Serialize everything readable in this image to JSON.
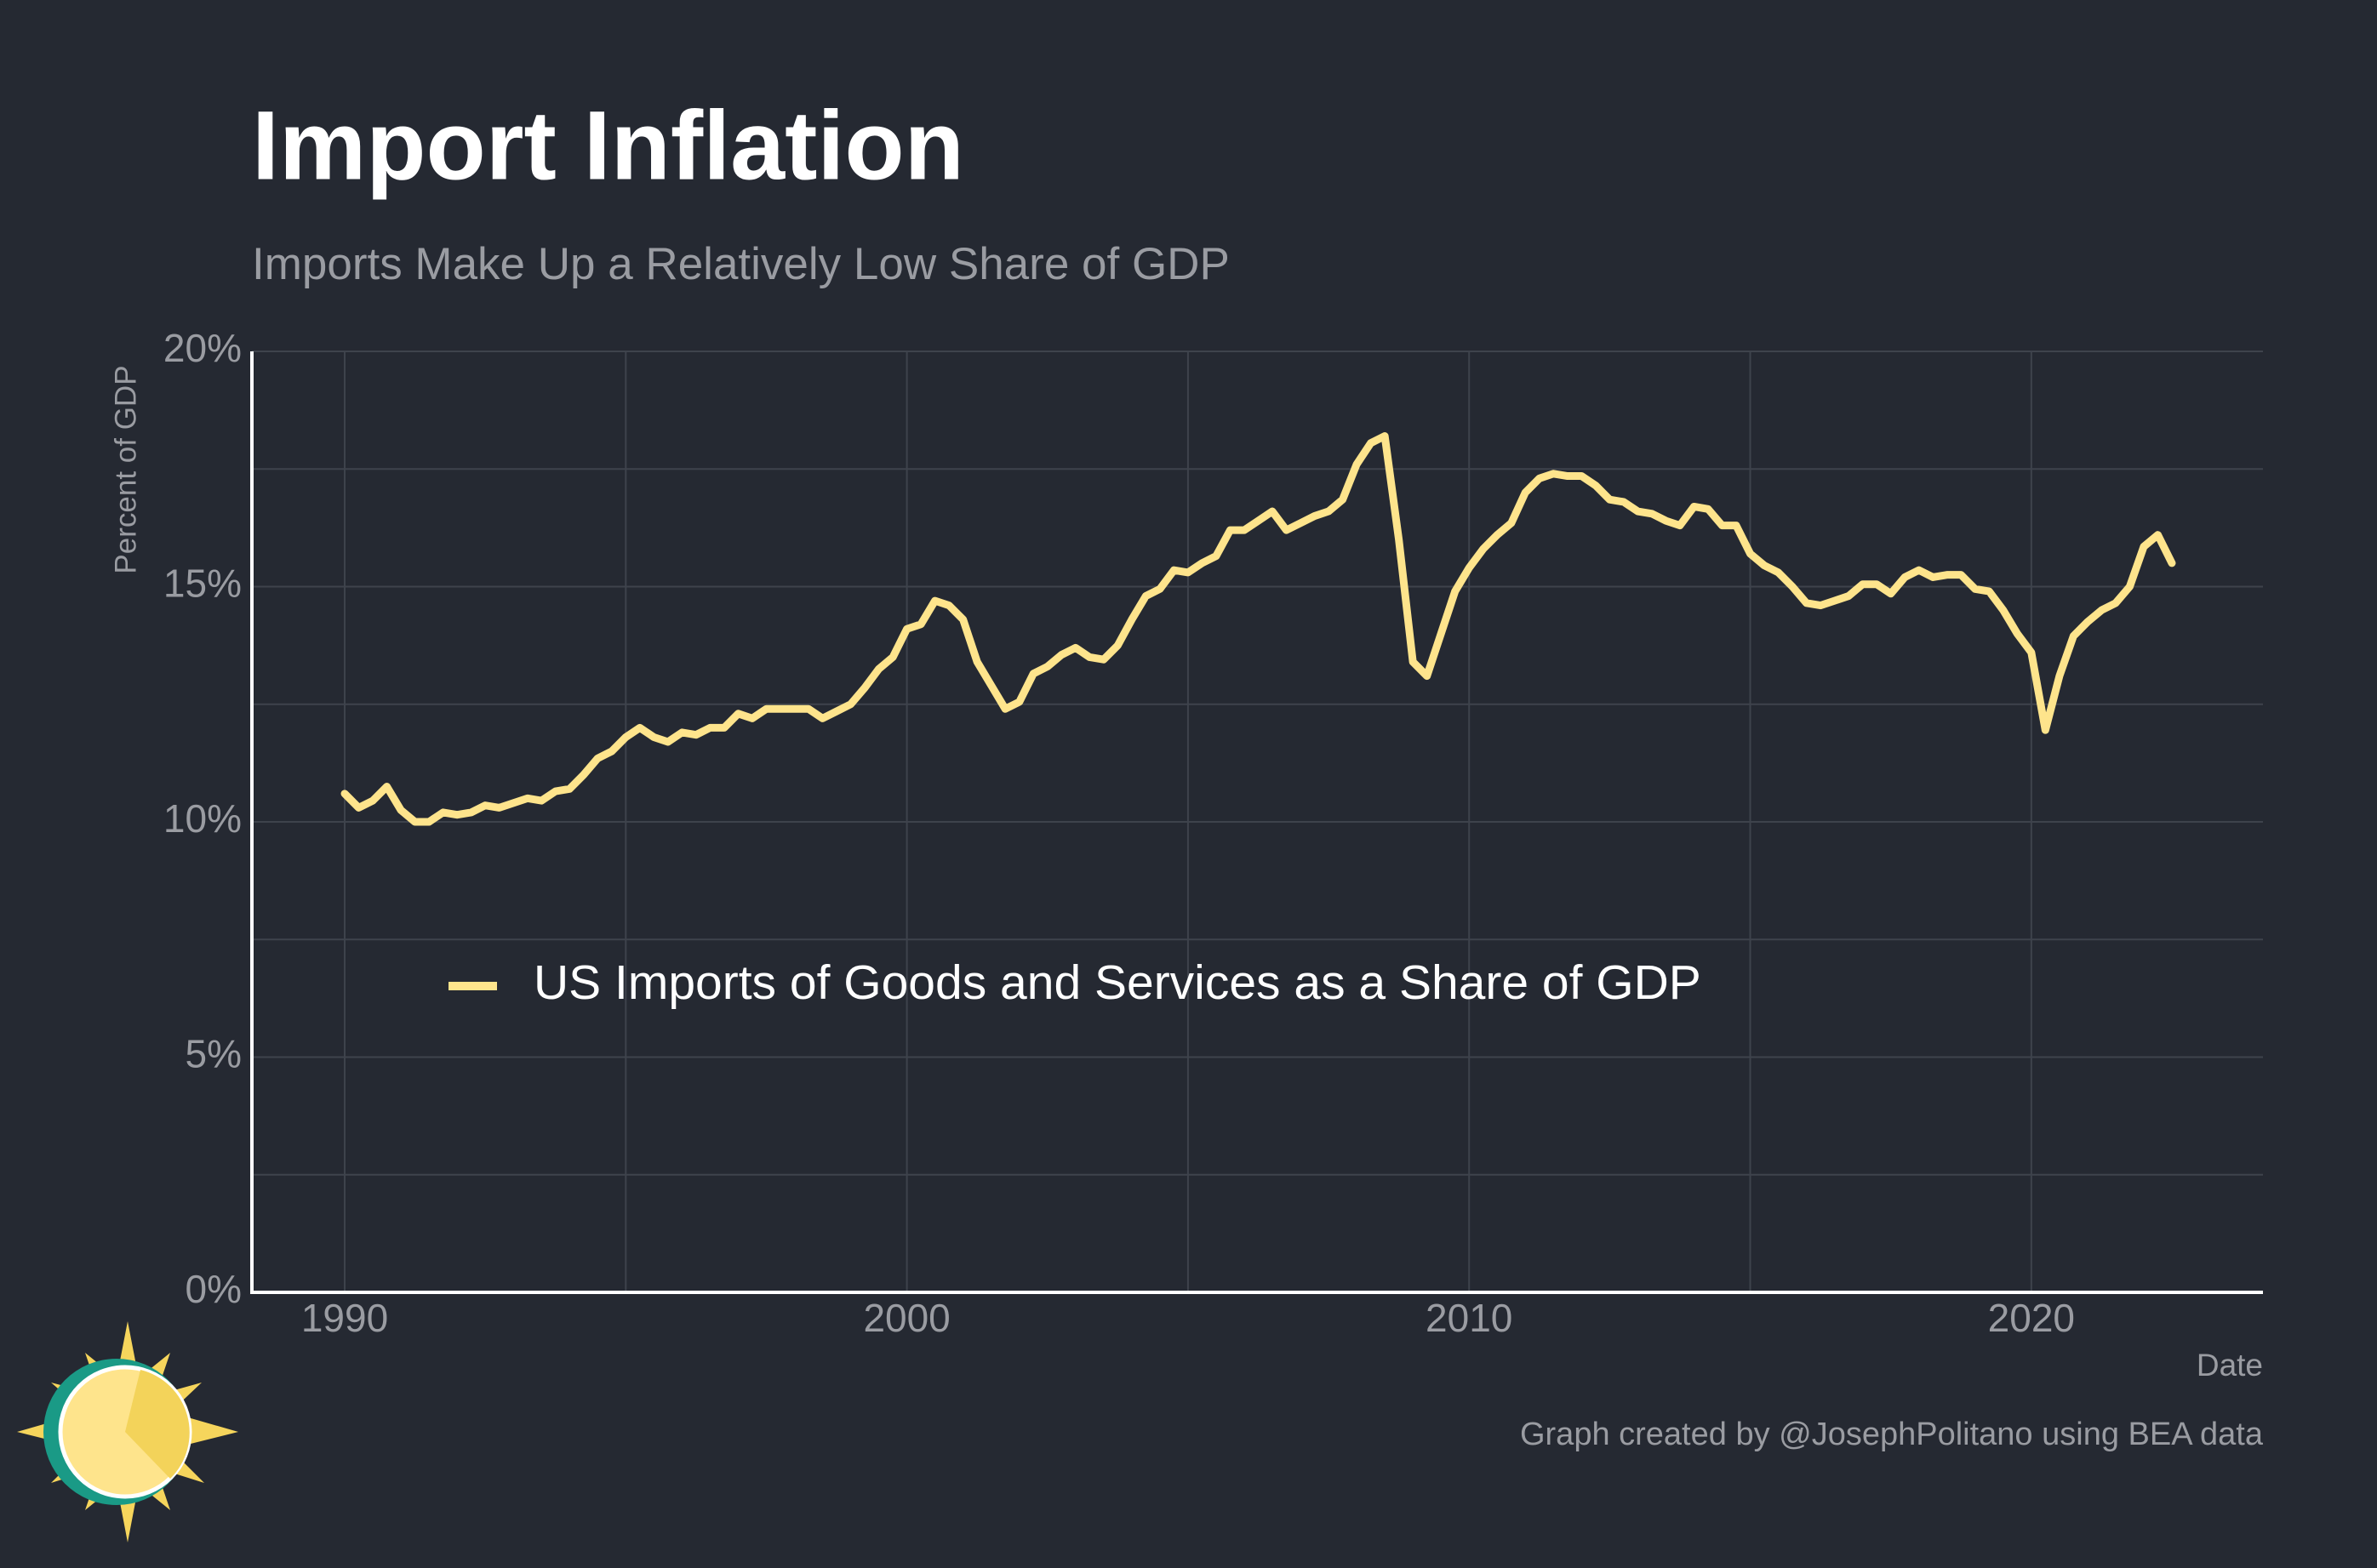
{
  "chart_data": {
    "type": "line",
    "title": "Import Inflation",
    "subtitle": "Imports Make Up a Relatively Low Share of GDP",
    "y_label": "Percent of GDP",
    "x_label": "Date",
    "credit": "Graph created by @JosephPolitano using BEA data",
    "x": [
      1990,
      1990.25,
      1990.5,
      1990.75,
      1991,
      1991.25,
      1991.5,
      1991.75,
      1992,
      1992.25,
      1992.5,
      1992.75,
      1993,
      1993.25,
      1993.5,
      1993.75,
      1994,
      1994.25,
      1994.5,
      1994.75,
      1995,
      1995.25,
      1995.5,
      1995.75,
      1996,
      1996.25,
      1996.5,
      1996.75,
      1997,
      1997.25,
      1997.5,
      1997.75,
      1998,
      1998.25,
      1998.5,
      1998.75,
      1999,
      1999.25,
      1999.5,
      1999.75,
      2000,
      2000.25,
      2000.5,
      2000.75,
      2001,
      2001.25,
      2001.5,
      2001.75,
      2002,
      2002.25,
      2002.5,
      2002.75,
      2003,
      2003.25,
      2003.5,
      2003.75,
      2004,
      2004.25,
      2004.5,
      2004.75,
      2005,
      2005.25,
      2005.5,
      2005.75,
      2006,
      2006.25,
      2006.5,
      2006.75,
      2007,
      2007.25,
      2007.5,
      2007.75,
      2008,
      2008.25,
      2008.5,
      2008.75,
      2009,
      2009.25,
      2009.5,
      2009.75,
      2010,
      2010.25,
      2010.5,
      2010.75,
      2011,
      2011.25,
      2011.5,
      2011.75,
      2012,
      2012.25,
      2012.5,
      2012.75,
      2013,
      2013.25,
      2013.5,
      2013.75,
      2014,
      2014.25,
      2014.5,
      2014.75,
      2015,
      2015.25,
      2015.5,
      2015.75,
      2016,
      2016.25,
      2016.5,
      2016.75,
      2017,
      2017.25,
      2017.5,
      2017.75,
      2018,
      2018.25,
      2018.5,
      2018.75,
      2019,
      2019.25,
      2019.5,
      2019.75,
      2020,
      2020.25,
      2020.5,
      2020.75,
      2021,
      2021.25,
      2021.5,
      2021.75,
      2022,
      2022.25,
      2022.5
    ],
    "series": [
      {
        "name": "US Imports of Goods and Services as a Share of GDP",
        "color": "#fee48c",
        "values": [
          10.6,
          10.3,
          10.45,
          10.75,
          10.25,
          10.0,
          10.0,
          10.2,
          10.15,
          10.2,
          10.35,
          10.3,
          10.4,
          10.5,
          10.45,
          10.65,
          10.7,
          11.0,
          11.35,
          11.5,
          11.8,
          12.0,
          11.8,
          11.7,
          11.9,
          11.85,
          12.0,
          12.0,
          12.3,
          12.2,
          12.4,
          12.4,
          12.4,
          12.4,
          12.2,
          12.35,
          12.5,
          12.85,
          13.25,
          13.5,
          14.1,
          14.2,
          14.7,
          14.6,
          14.3,
          13.4,
          12.9,
          12.4,
          12.55,
          13.15,
          13.3,
          13.55,
          13.7,
          13.5,
          13.45,
          13.75,
          14.3,
          14.8,
          14.95,
          15.35,
          15.3,
          15.5,
          15.65,
          16.2,
          16.2,
          16.4,
          16.6,
          16.2,
          16.35,
          16.5,
          16.6,
          16.85,
          17.6,
          18.05,
          18.2,
          16.0,
          13.4,
          13.1,
          14.0,
          14.9,
          15.4,
          15.8,
          16.1,
          16.35,
          17.0,
          17.3,
          17.4,
          17.35,
          17.35,
          17.15,
          16.85,
          16.8,
          16.6,
          16.55,
          16.4,
          16.3,
          16.7,
          16.65,
          16.3,
          16.3,
          15.7,
          15.45,
          15.3,
          15.0,
          14.65,
          14.6,
          14.7,
          14.8,
          15.05,
          15.05,
          14.85,
          15.2,
          15.35,
          15.2,
          15.25,
          15.25,
          14.95,
          14.9,
          14.5,
          14.0,
          13.6,
          11.95,
          13.1,
          13.95,
          14.25,
          14.5,
          14.65,
          15.0,
          15.85,
          16.1,
          15.5
        ]
      }
    ],
    "xlim": [
      1988.35,
      2024.12
    ],
    "xticks": [
      1990,
      2000,
      2010,
      2020
    ],
    "x_minor_ticks": [
      1995,
      2005,
      2015
    ],
    "ylim": [
      0,
      20
    ],
    "yticks": [
      {
        "value": 0,
        "label": "0%"
      },
      {
        "value": 5,
        "label": "5%"
      },
      {
        "value": 10,
        "label": "10%"
      },
      {
        "value": 15,
        "label": "15%"
      },
      {
        "value": 20,
        "label": "20%"
      }
    ],
    "y_minor_ticks": [
      2.5,
      7.5,
      12.5,
      17.5
    ],
    "grid": true
  }
}
